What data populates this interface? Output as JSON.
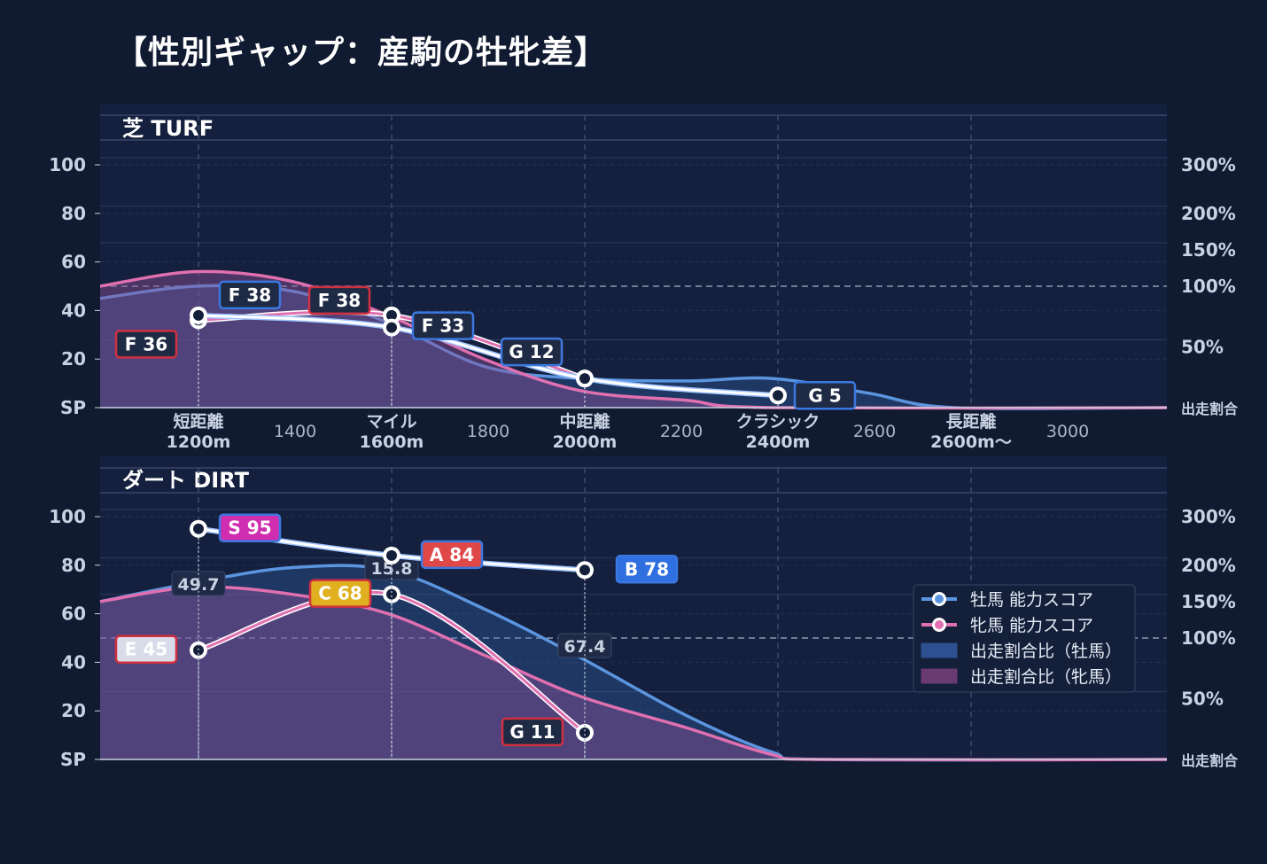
{
  "title": "【性別ギャップ：産駒の牡牝差】",
  "colors": {
    "background": "#101a30",
    "panel": "#141f3a",
    "male": "#5b95e0",
    "female": "#e070b0",
    "male_line": "#ffffff",
    "grid": "#3a4668"
  },
  "axes": {
    "y_ticks": [
      "SP",
      "20",
      "40",
      "60",
      "80",
      "100"
    ],
    "y2_ticks": [
      "出走割合",
      "50%",
      "100%",
      "150%",
      "200%",
      "300%"
    ],
    "x_categories": [
      {
        "label": "短距離",
        "sub": "1200m"
      },
      {
        "label": "マイル",
        "sub": "1600m"
      },
      {
        "label": "中距離",
        "sub": "2000m"
      },
      {
        "label": "クラシック",
        "sub": "2400m"
      },
      {
        "label": "長距離",
        "sub": "2600m〜"
      }
    ],
    "x_numbers": [
      "1400",
      "1800",
      "2200",
      "2600",
      "3000"
    ]
  },
  "legend": {
    "male_score": "牡馬 能力スコア",
    "female_score": "牝馬 能力スコア",
    "male_ratio": "出走割合比（牡馬）",
    "female_ratio": "出走割合比（牝馬）"
  },
  "chart_data": [
    {
      "panel": "芝 TURF",
      "type": "line",
      "x": [
        1200,
        1600,
        2000,
        2400
      ],
      "ylim": [
        0,
        100
      ],
      "series": [
        {
          "name": "牡馬 能力スコア",
          "x": [
            1200,
            1600,
            2000,
            2400
          ],
          "values": [
            38,
            33,
            12,
            5
          ],
          "grades": [
            "F 38",
            "F 33",
            "G 12",
            "G 5"
          ]
        },
        {
          "name": "牝馬 能力スコア",
          "x": [
            1200,
            1600,
            2000
          ],
          "values": [
            36,
            38,
            12
          ],
          "grades": [
            "F 36",
            "F 38",
            "G 12"
          ]
        }
      ],
      "ratio_labels": [
        "",
        "",
        ""
      ]
    },
    {
      "panel": "ダート DIRT",
      "type": "line",
      "x": [
        1200,
        1600,
        2000
      ],
      "ylim": [
        0,
        100
      ],
      "series": [
        {
          "name": "牡馬 能力スコア",
          "x": [
            1200,
            1600,
            2000
          ],
          "values": [
            95,
            84,
            78
          ],
          "grades": [
            "S 95",
            "A 84",
            "B 78"
          ]
        },
        {
          "name": "牝馬 能力スコア",
          "x": [
            1200,
            1600,
            2000
          ],
          "values": [
            45,
            68,
            11
          ],
          "grades": [
            "E 45",
            "C 68",
            "G 11"
          ]
        }
      ],
      "ratio_labels": [
        "49.7",
        "15.8",
        "67.4"
      ]
    }
  ]
}
